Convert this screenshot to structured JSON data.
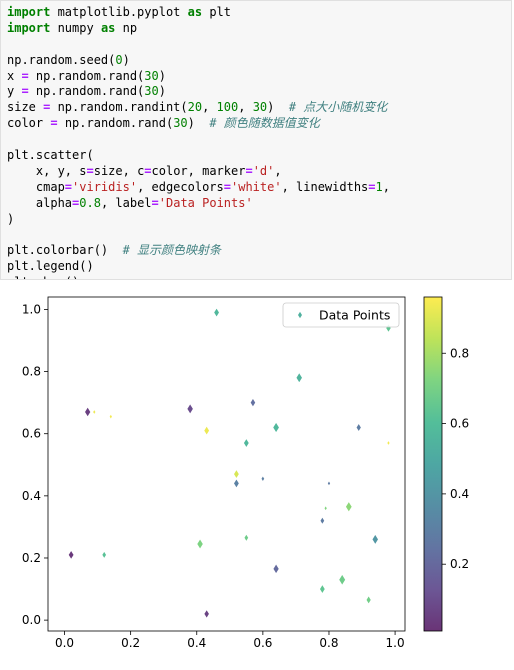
{
  "code_lines": [
    [
      {
        "t": "import",
        "c": "kw"
      },
      {
        "t": " matplotlib.pyplot "
      },
      {
        "t": "as",
        "c": "kw"
      },
      {
        "t": " plt"
      }
    ],
    [
      {
        "t": "import",
        "c": "kw"
      },
      {
        "t": " numpy "
      },
      {
        "t": "as",
        "c": "kw"
      },
      {
        "t": " np"
      }
    ],
    [],
    [
      {
        "t": "np.random.seed("
      },
      {
        "t": "0",
        "c": "num"
      },
      {
        "t": ")"
      }
    ],
    [
      {
        "t": "x "
      },
      {
        "t": "=",
        "c": "op"
      },
      {
        "t": " np.random.rand("
      },
      {
        "t": "30",
        "c": "num"
      },
      {
        "t": ")"
      }
    ],
    [
      {
        "t": "y "
      },
      {
        "t": "=",
        "c": "op"
      },
      {
        "t": " np.random.rand("
      },
      {
        "t": "30",
        "c": "num"
      },
      {
        "t": ")"
      }
    ],
    [
      {
        "t": "size "
      },
      {
        "t": "=",
        "c": "op"
      },
      {
        "t": " np.random.randint("
      },
      {
        "t": "20",
        "c": "num"
      },
      {
        "t": ", "
      },
      {
        "t": "100",
        "c": "num"
      },
      {
        "t": ", "
      },
      {
        "t": "30",
        "c": "num"
      },
      {
        "t": ")  "
      },
      {
        "t": "# 点大小随机变化",
        "c": "cm"
      }
    ],
    [
      {
        "t": "color "
      },
      {
        "t": "=",
        "c": "op"
      },
      {
        "t": " np.random.rand("
      },
      {
        "t": "30",
        "c": "num"
      },
      {
        "t": ")  "
      },
      {
        "t": "# 颜色随数据值变化",
        "c": "cm"
      }
    ],
    [],
    [
      {
        "t": "plt.scatter("
      }
    ],
    [
      {
        "t": "    x, y, s"
      },
      {
        "t": "=",
        "c": "op"
      },
      {
        "t": "size, c"
      },
      {
        "t": "=",
        "c": "op"
      },
      {
        "t": "color, marker"
      },
      {
        "t": "=",
        "c": "op"
      },
      {
        "t": "'d'",
        "c": "str"
      },
      {
        "t": ","
      }
    ],
    [
      {
        "t": "    cmap"
      },
      {
        "t": "=",
        "c": "op"
      },
      {
        "t": "'viridis'",
        "c": "str"
      },
      {
        "t": ", edgecolors"
      },
      {
        "t": "=",
        "c": "op"
      },
      {
        "t": "'white'",
        "c": "str"
      },
      {
        "t": ", linewidths"
      },
      {
        "t": "=",
        "c": "op"
      },
      {
        "t": "1",
        "c": "num"
      },
      {
        "t": ","
      }
    ],
    [
      {
        "t": "    alpha"
      },
      {
        "t": "=",
        "c": "op"
      },
      {
        "t": "0.8",
        "c": "num"
      },
      {
        "t": ", label"
      },
      {
        "t": "=",
        "c": "op"
      },
      {
        "t": "'Data Points'",
        "c": "str"
      }
    ],
    [
      {
        "t": ")"
      }
    ],
    [],
    [
      {
        "t": "plt.colorbar()  "
      },
      {
        "t": "# 显示颜色映射条",
        "c": "cm"
      }
    ],
    [
      {
        "t": "plt.legend()"
      }
    ],
    [
      {
        "t": "plt.show()"
      }
    ]
  ],
  "chart_data": {
    "type": "scatter",
    "marker": "thin_diamond",
    "colormap": "viridis",
    "alpha": 0.8,
    "edgecolor": "white",
    "xlim": [
      -0.05,
      1.03
    ],
    "ylim": [
      -0.035,
      1.04
    ],
    "xticks": [
      0.0,
      0.2,
      0.4,
      0.6,
      0.8,
      1.0
    ],
    "xtick_labels": [
      "0.0",
      "0.2",
      "0.4",
      "0.6",
      "0.8",
      "1.0"
    ],
    "yticks": [
      0.0,
      0.2,
      0.4,
      0.6,
      0.8,
      1.0
    ],
    "ytick_labels": [
      "0.0",
      "0.2",
      "0.4",
      "0.6",
      "0.8",
      "1.0"
    ],
    "legend": {
      "label": "Data Points",
      "loc": "upper right"
    },
    "colorbar": {
      "range": [
        0.01,
        0.96
      ],
      "ticks": [
        0.2,
        0.4,
        0.6,
        0.8
      ],
      "tick_labels": [
        "0.2",
        "0.4",
        "0.6",
        "0.8"
      ]
    },
    "points": [
      {
        "x": 0.46,
        "y": 0.99,
        "s": 60,
        "c": 0.57
      },
      {
        "x": 0.98,
        "y": 0.94,
        "s": 55,
        "c": 0.64
      },
      {
        "x": 0.71,
        "y": 0.78,
        "s": 75,
        "c": 0.55
      },
      {
        "x": 0.07,
        "y": 0.67,
        "s": 70,
        "c": 0.05
      },
      {
        "x": 0.09,
        "y": 0.67,
        "s": 20,
        "c": 0.93
      },
      {
        "x": 0.14,
        "y": 0.655,
        "s": 20,
        "c": 0.94
      },
      {
        "x": 0.38,
        "y": 0.68,
        "s": 75,
        "c": 0.1
      },
      {
        "x": 0.57,
        "y": 0.7,
        "s": 55,
        "c": 0.23
      },
      {
        "x": 0.43,
        "y": 0.61,
        "s": 60,
        "c": 0.93
      },
      {
        "x": 0.55,
        "y": 0.57,
        "s": 60,
        "c": 0.57
      },
      {
        "x": 0.64,
        "y": 0.62,
        "s": 80,
        "c": 0.57
      },
      {
        "x": 0.89,
        "y": 0.62,
        "s": 50,
        "c": 0.29
      },
      {
        "x": 0.98,
        "y": 0.57,
        "s": 20,
        "c": 0.94
      },
      {
        "x": 0.52,
        "y": 0.47,
        "s": 60,
        "c": 0.89
      },
      {
        "x": 0.52,
        "y": 0.44,
        "s": 60,
        "c": 0.31
      },
      {
        "x": 0.6,
        "y": 0.455,
        "s": 25,
        "c": 0.3
      },
      {
        "x": 0.8,
        "y": 0.44,
        "s": 20,
        "c": 0.28
      },
      {
        "x": 0.79,
        "y": 0.36,
        "s": 20,
        "c": 0.73
      },
      {
        "x": 0.86,
        "y": 0.365,
        "s": 80,
        "c": 0.75
      },
      {
        "x": 0.78,
        "y": 0.32,
        "s": 40,
        "c": 0.28
      },
      {
        "x": 0.02,
        "y": 0.21,
        "s": 60,
        "c": 0.03
      },
      {
        "x": 0.12,
        "y": 0.21,
        "s": 40,
        "c": 0.62
      },
      {
        "x": 0.41,
        "y": 0.245,
        "s": 75,
        "c": 0.72
      },
      {
        "x": 0.55,
        "y": 0.265,
        "s": 40,
        "c": 0.68
      },
      {
        "x": 0.64,
        "y": 0.165,
        "s": 70,
        "c": 0.21
      },
      {
        "x": 0.94,
        "y": 0.26,
        "s": 75,
        "c": 0.41
      },
      {
        "x": 0.84,
        "y": 0.13,
        "s": 85,
        "c": 0.68
      },
      {
        "x": 0.78,
        "y": 0.1,
        "s": 60,
        "c": 0.64
      },
      {
        "x": 0.92,
        "y": 0.065,
        "s": 50,
        "c": 0.69
      },
      {
        "x": 0.43,
        "y": 0.02,
        "s": 55,
        "c": 0.06
      }
    ]
  }
}
